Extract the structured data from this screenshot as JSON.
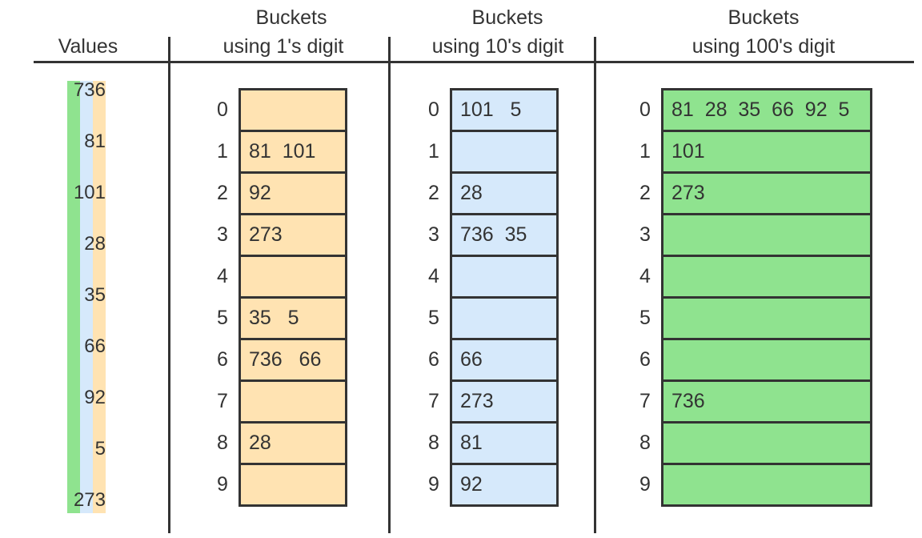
{
  "headers": {
    "values": "Values",
    "ones": [
      "Buckets",
      "using 1's digit"
    ],
    "tens": [
      "Buckets",
      "using 10's digit"
    ],
    "hundreds": [
      "Buckets",
      "using 100's digit"
    ]
  },
  "colors": {
    "ones": "#ffe3b2",
    "tens": "#d6e9fb",
    "hundreds": "#8fe38f",
    "lines": "#333333"
  },
  "values": [
    "736",
    "81",
    "101",
    "28",
    "35",
    "66",
    "92",
    "5",
    "273"
  ],
  "indices": [
    "0",
    "1",
    "2",
    "3",
    "4",
    "5",
    "6",
    "7",
    "8",
    "9"
  ],
  "ones_buckets": [
    "",
    "81  101",
    "92",
    "273",
    "",
    "35   5",
    "736   66",
    "",
    "28",
    ""
  ],
  "tens_buckets": [
    "101   5",
    "",
    "28",
    "736  35",
    "",
    "",
    "66",
    "273",
    "81",
    "92"
  ],
  "hundreds_buckets": [
    "81  28  35  66  92  5",
    "101",
    "273",
    "",
    "",
    "",
    "",
    "736",
    "",
    ""
  ]
}
